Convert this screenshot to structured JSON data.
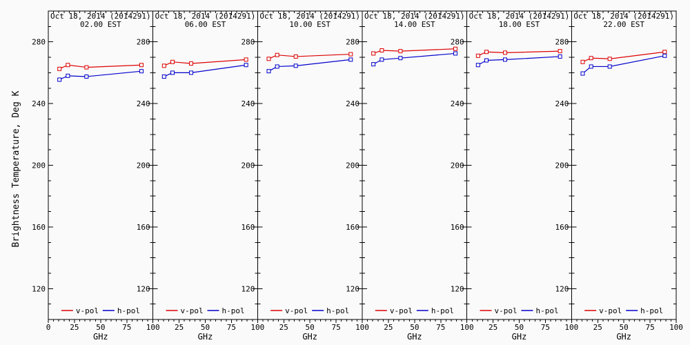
{
  "page": {
    "background": "#fafafa",
    "axis_color": "#000000"
  },
  "chart_data": {
    "type": "line",
    "layout": "six side-by-side panels, shared y-scale, legend inside each panel bottom",
    "ylabel": "Brightness Temperature, Deg K",
    "xlabel": "GHz",
    "x": [
      10.65,
      18.7,
      36.5,
      89
    ],
    "xlim": [
      0,
      100
    ],
    "xticks": [
      0,
      25,
      50,
      75,
      100
    ],
    "x_minor_step": 5,
    "ylim": [
      100,
      300
    ],
    "yticks": [
      120,
      160,
      200,
      240,
      280
    ],
    "y_minor_step": 10,
    "grid": false,
    "marker": "open-square",
    "legend": [
      {
        "name": "v-pol",
        "color": "#dd0000"
      },
      {
        "name": "h-pol",
        "color": "#0000cc"
      }
    ],
    "panels": [
      {
        "title_line1": "Oct 18, 2014 (2014291)",
        "title_line2": "02.00 EST",
        "series": [
          {
            "name": "v-pol",
            "color": "#dd0000",
            "values": [
              262.5,
              265.0,
              263.5,
              265.0
            ]
          },
          {
            "name": "h-pol",
            "color": "#0000cc",
            "values": [
              255.5,
              258.0,
              257.5,
              261.0
            ]
          }
        ]
      },
      {
        "title_line1": "Oct 18, 2014 (2014291)",
        "title_line2": "06.00 EST",
        "series": [
          {
            "name": "v-pol",
            "color": "#dd0000",
            "values": [
              264.5,
              267.0,
              266.0,
              268.5
            ]
          },
          {
            "name": "h-pol",
            "color": "#0000cc",
            "values": [
              257.5,
              260.0,
              260.0,
              265.0
            ]
          }
        ]
      },
      {
        "title_line1": "Oct 18, 2014 (2014291)",
        "title_line2": "10.00 EST",
        "series": [
          {
            "name": "v-pol",
            "color": "#dd0000",
            "values": [
              269.0,
              271.5,
              270.5,
              272.0
            ]
          },
          {
            "name": "h-pol",
            "color": "#0000cc",
            "values": [
              261.0,
              264.0,
              264.5,
              268.5
            ]
          }
        ]
      },
      {
        "title_line1": "Oct 18, 2014 (2014291)",
        "title_line2": "14.00 EST",
        "series": [
          {
            "name": "v-pol",
            "color": "#dd0000",
            "values": [
              272.5,
              274.5,
              274.0,
              275.5
            ]
          },
          {
            "name": "h-pol",
            "color": "#0000cc",
            "values": [
              265.5,
              268.5,
              269.5,
              272.5
            ]
          }
        ]
      },
      {
        "title_line1": "Oct 18, 2014 (2014291)",
        "title_line2": "18.00 EST",
        "series": [
          {
            "name": "v-pol",
            "color": "#dd0000",
            "values": [
              271.0,
              273.5,
              273.0,
              274.0
            ]
          },
          {
            "name": "h-pol",
            "color": "#0000cc",
            "values": [
              265.0,
              268.0,
              268.5,
              270.5
            ]
          }
        ]
      },
      {
        "title_line1": "Oct 18, 2014 (2014291)",
        "title_line2": "22.00 EST",
        "series": [
          {
            "name": "v-pol",
            "color": "#dd0000",
            "values": [
              267.0,
              269.5,
              269.0,
              273.5
            ]
          },
          {
            "name": "h-pol",
            "color": "#0000cc",
            "values": [
              259.5,
              264.0,
              264.0,
              271.0
            ]
          }
        ]
      }
    ]
  }
}
